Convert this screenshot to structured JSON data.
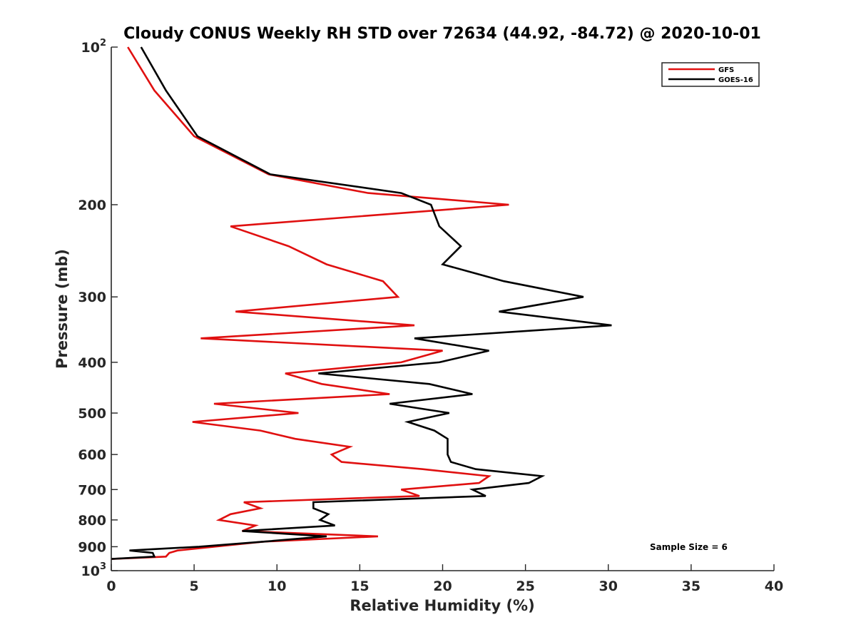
{
  "chart_data": {
    "type": "line",
    "title": "Cloudy CONUS Weekly RH STD over 72634 (44.92, -84.72) @ 2020-10-01",
    "xlabel": "Relative Humidity (%)",
    "ylabel": "Pressure (mb)",
    "xlim": [
      0,
      40
    ],
    "ylim": [
      100,
      1000
    ],
    "yscale": "log",
    "y_reversed": true,
    "x_ticks": [
      "0",
      "5",
      "10",
      "15",
      "20",
      "25",
      "30",
      "35",
      "40"
    ],
    "x_tick_values": [
      0,
      5,
      10,
      15,
      20,
      25,
      30,
      35,
      40
    ],
    "y_ticks": [
      {
        "value": 100,
        "base": "10",
        "exp": "2"
      },
      {
        "value": 200,
        "base": "200",
        "exp": ""
      },
      {
        "value": 300,
        "base": "300",
        "exp": ""
      },
      {
        "value": 400,
        "base": "400",
        "exp": ""
      },
      {
        "value": 500,
        "base": "500",
        "exp": ""
      },
      {
        "value": 600,
        "base": "600",
        "exp": ""
      },
      {
        "value": 700,
        "base": "700",
        "exp": ""
      },
      {
        "value": 800,
        "base": "800",
        "exp": ""
      },
      {
        "value": 900,
        "base": "900",
        "exp": ""
      },
      {
        "value": 1000,
        "base": "10",
        "exp": "3"
      }
    ],
    "grid": false,
    "legend_position": "top-right",
    "series": [
      {
        "name": "GFS",
        "color": "#e01010",
        "points": [
          [
            1.0,
            100
          ],
          [
            2.6,
            121
          ],
          [
            5.0,
            148
          ],
          [
            9.5,
            175
          ],
          [
            15.5,
            190
          ],
          [
            24.0,
            200
          ],
          [
            7.2,
            220
          ],
          [
            10.7,
            240
          ],
          [
            13.0,
            260
          ],
          [
            16.4,
            280
          ],
          [
            17.3,
            300
          ],
          [
            7.5,
            320
          ],
          [
            18.3,
            340
          ],
          [
            5.4,
            360
          ],
          [
            20.0,
            380
          ],
          [
            17.5,
            400
          ],
          [
            10.5,
            420
          ],
          [
            12.7,
            440
          ],
          [
            16.8,
            460
          ],
          [
            6.2,
            480
          ],
          [
            11.3,
            500
          ],
          [
            4.9,
            520
          ],
          [
            9.0,
            540
          ],
          [
            11.1,
            560
          ],
          [
            14.4,
            580
          ],
          [
            13.3,
            600
          ],
          [
            13.9,
            620
          ],
          [
            18.8,
            640
          ],
          [
            22.8,
            660
          ],
          [
            22.2,
            680
          ],
          [
            17.5,
            700
          ],
          [
            18.6,
            720
          ],
          [
            8.0,
            740
          ],
          [
            9.0,
            760
          ],
          [
            7.2,
            780
          ],
          [
            6.5,
            800
          ],
          [
            8.7,
            820
          ],
          [
            7.9,
            840
          ],
          [
            16.1,
            860
          ],
          [
            9.2,
            880
          ],
          [
            6.2,
            900
          ],
          [
            4.0,
            915
          ],
          [
            3.5,
            925
          ],
          [
            3.3,
            940
          ],
          [
            0.0,
            950
          ]
        ]
      },
      {
        "name": "GOES-16",
        "color": "#000000",
        "points": [
          [
            1.8,
            100
          ],
          [
            3.3,
            121
          ],
          [
            5.2,
            148
          ],
          [
            9.6,
            175
          ],
          [
            17.5,
            190
          ],
          [
            19.3,
            200
          ],
          [
            19.8,
            220
          ],
          [
            21.1,
            240
          ],
          [
            20.0,
            260
          ],
          [
            23.7,
            280
          ],
          [
            28.5,
            300
          ],
          [
            23.4,
            320
          ],
          [
            30.2,
            340
          ],
          [
            18.3,
            360
          ],
          [
            22.8,
            380
          ],
          [
            19.8,
            400
          ],
          [
            12.5,
            420
          ],
          [
            19.2,
            440
          ],
          [
            21.8,
            460
          ],
          [
            16.8,
            480
          ],
          [
            20.4,
            500
          ],
          [
            17.9,
            520
          ],
          [
            19.5,
            540
          ],
          [
            20.3,
            560
          ],
          [
            20.3,
            580
          ],
          [
            20.3,
            600
          ],
          [
            20.5,
            620
          ],
          [
            22.0,
            640
          ],
          [
            26.0,
            660
          ],
          [
            25.2,
            680
          ],
          [
            21.8,
            700
          ],
          [
            22.6,
            720
          ],
          [
            12.2,
            740
          ],
          [
            12.2,
            760
          ],
          [
            13.1,
            780
          ],
          [
            12.6,
            800
          ],
          [
            13.5,
            820
          ],
          [
            7.9,
            840
          ],
          [
            13.0,
            860
          ],
          [
            9.2,
            880
          ],
          [
            5.3,
            900
          ],
          [
            1.1,
            915
          ],
          [
            2.5,
            925
          ],
          [
            2.6,
            940
          ],
          [
            0.0,
            950
          ]
        ]
      }
    ],
    "annotation": "Sample Size = 6"
  }
}
